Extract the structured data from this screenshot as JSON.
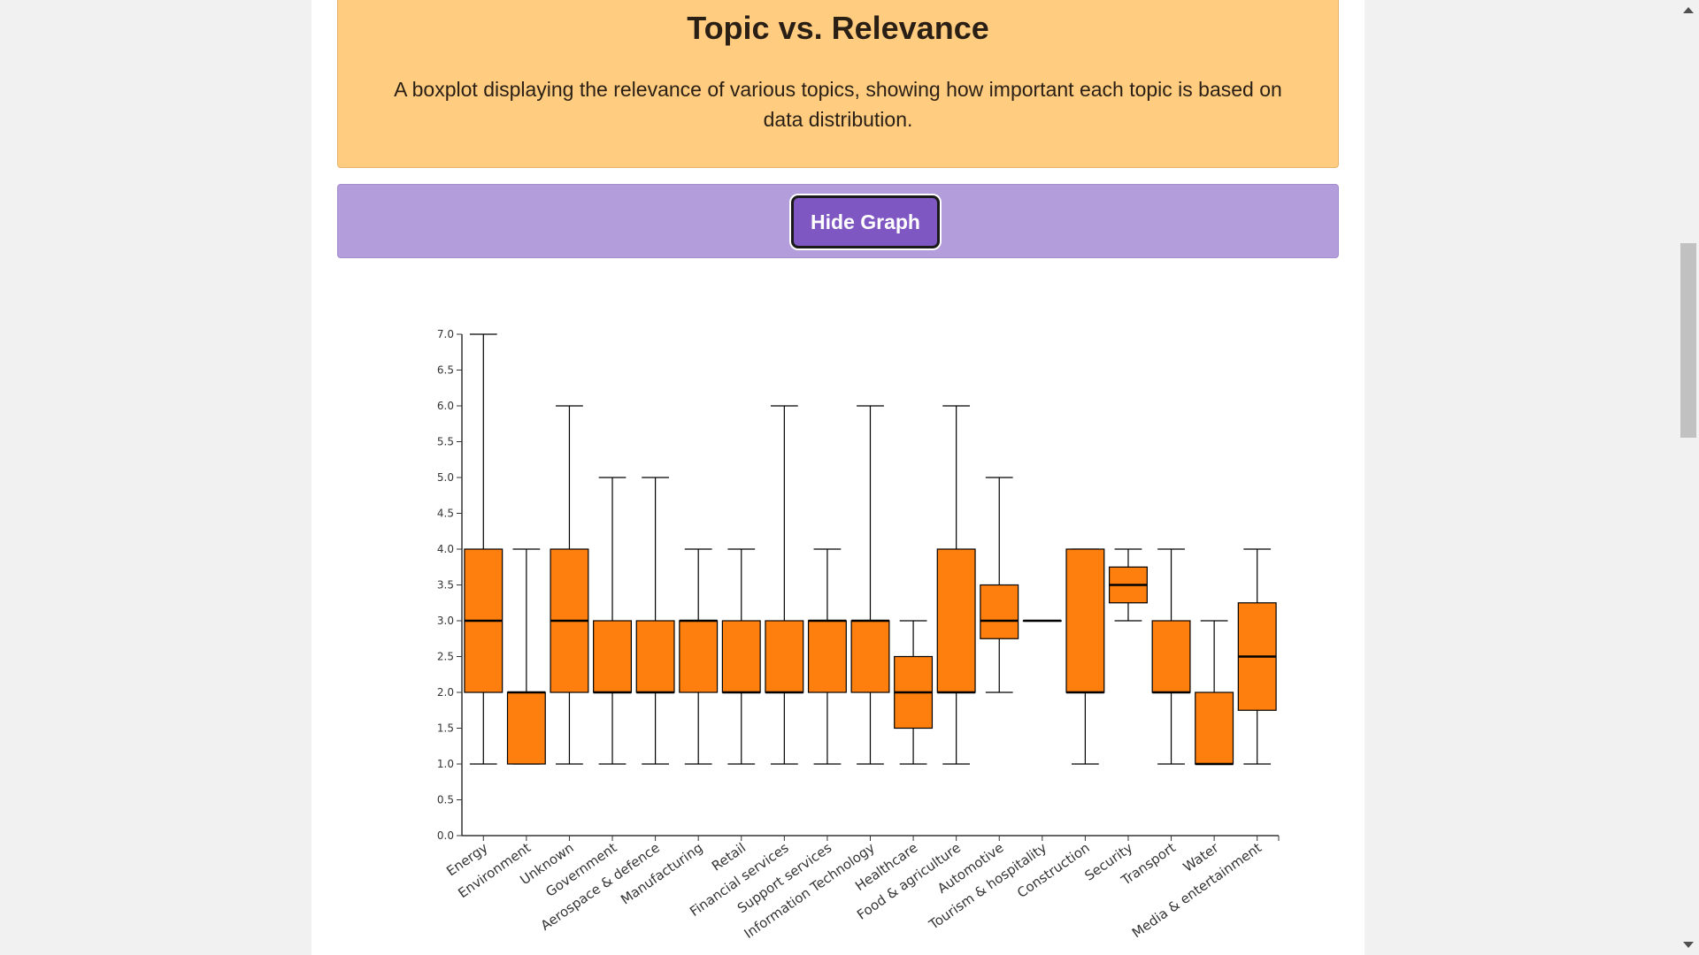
{
  "header": {
    "title": "Topic vs. Relevance",
    "subtitle": "A boxplot displaying the relevance of various topics, showing how important each topic is based on data distribution."
  },
  "controls": {
    "toggle_label": "Hide Graph"
  },
  "colors": {
    "header_bg": "#ffcc80",
    "toolbar_bg": "#b39ddb",
    "button_bg": "#7e57c2",
    "box_fill": "#ff7f0e"
  },
  "chart_data": {
    "type": "boxplot",
    "title": "",
    "xlabel": "",
    "ylabel": "",
    "ylim": [
      0,
      7
    ],
    "yticks": [
      "0.0",
      "0.5",
      "1.0",
      "1.5",
      "2.0",
      "2.5",
      "3.0",
      "3.5",
      "4.0",
      "4.5",
      "5.0",
      "5.5",
      "6.0",
      "6.5",
      "7.0"
    ],
    "grid": false,
    "categories": [
      "Energy",
      "Environment",
      "Unknown",
      "Government",
      "Aerospace & defence",
      "Manufacturing",
      "Retail",
      "Financial services",
      "Support services",
      "Information Technology",
      "Healthcare",
      "Food & agriculture",
      "Automotive",
      "Tourism & hospitality",
      "Construction",
      "Security",
      "Transport",
      "Water",
      "Media & entertainment"
    ],
    "boxes": [
      {
        "min": 1,
        "q1": 2,
        "median": 3,
        "q3": 4,
        "max": 7
      },
      {
        "min": 1,
        "q1": 1,
        "median": 2,
        "q3": 2,
        "max": 4
      },
      {
        "min": 1,
        "q1": 2,
        "median": 3,
        "q3": 4,
        "max": 6
      },
      {
        "min": 1,
        "q1": 2,
        "median": 2,
        "q3": 3,
        "max": 5
      },
      {
        "min": 1,
        "q1": 2,
        "median": 2,
        "q3": 3,
        "max": 5
      },
      {
        "min": 1,
        "q1": 2,
        "median": 3,
        "q3": 3,
        "max": 4
      },
      {
        "min": 1,
        "q1": 2,
        "median": 2,
        "q3": 3,
        "max": 4
      },
      {
        "min": 1,
        "q1": 2,
        "median": 2,
        "q3": 3,
        "max": 6
      },
      {
        "min": 1,
        "q1": 2,
        "median": 3,
        "q3": 3,
        "max": 4
      },
      {
        "min": 1,
        "q1": 2,
        "median": 3,
        "q3": 3,
        "max": 6
      },
      {
        "min": 1,
        "q1": 1.5,
        "median": 2,
        "q3": 2.5,
        "max": 3
      },
      {
        "min": 1,
        "q1": 2,
        "median": 2,
        "q3": 4,
        "max": 6
      },
      {
        "min": 2,
        "q1": 2.75,
        "median": 3,
        "q3": 3.5,
        "max": 5
      },
      {
        "min": 3,
        "q1": 3,
        "median": 3,
        "q3": 3,
        "max": 3
      },
      {
        "min": 1,
        "q1": 2,
        "median": 2,
        "q3": 4,
        "max": 4
      },
      {
        "min": 3,
        "q1": 3.25,
        "median": 3.5,
        "q3": 3.75,
        "max": 4
      },
      {
        "min": 1,
        "q1": 2,
        "median": 2,
        "q3": 3,
        "max": 4
      },
      {
        "min": 1,
        "q1": 1,
        "median": 1,
        "q3": 2,
        "max": 3
      },
      {
        "min": 1,
        "q1": 1.75,
        "median": 2.5,
        "q3": 3.25,
        "max": 4
      }
    ]
  }
}
